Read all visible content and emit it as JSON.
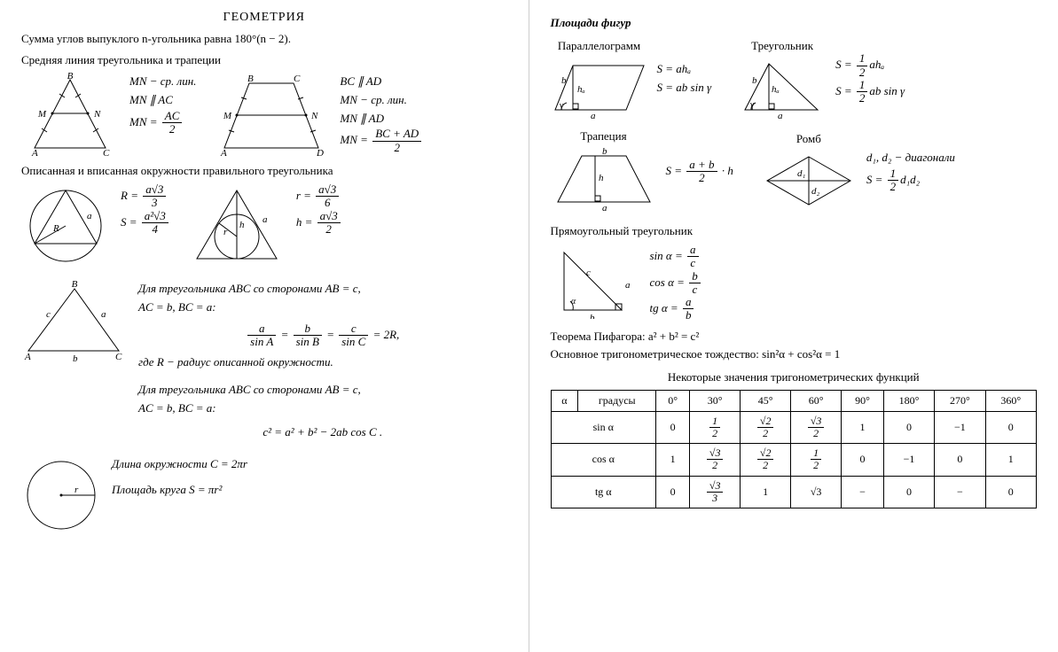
{
  "left": {
    "title": "ГЕОМЕТРИЯ",
    "polygon_sum": "Сумма углов выпуклого n-угольника равна 180°(n − 2).",
    "midline_head": "Средняя линия треугольника и трапеции",
    "tri_midline": {
      "l1": "MN − ср. лин.",
      "l2": "MN ∥ AC",
      "l3_pre": "MN = ",
      "frac_num": "AC",
      "frac_den": "2"
    },
    "trap_midline": {
      "l1": "BC ∥ AD",
      "l2": "MN − ср. лин.",
      "l3": "MN ∥ AD",
      "l4_pre": "MN = ",
      "frac_num": "BC + AD",
      "frac_den": "2"
    },
    "circ_head": "Описанная и вписанная окружности правильного треугольника",
    "circum": {
      "R_pre": "R = ",
      "R_num": "a√3",
      "R_den": "3",
      "S_pre": "S = ",
      "S_num": "a²√3",
      "S_den": "4"
    },
    "inscr": {
      "r_pre": "r = ",
      "r_num": "a√3",
      "r_den": "6",
      "h_pre": "h = ",
      "h_num": "a√3",
      "h_den": "2"
    },
    "sine_law": {
      "intro1": "Для треугольника ABC со сторонами AB = c,",
      "intro2": "AC = b, BC = a:",
      "eq": "= 2R,",
      "fa_num": "a",
      "fa_den": "sin A",
      "fb_num": "b",
      "fb_den": "sin B",
      "fc_num": "c",
      "fc_den": "sin C",
      "where": "где R − радиус описанной окружности."
    },
    "cos_law": {
      "intro1": "Для треугольника ABC со сторонами AB = c,",
      "intro2": "AC = b, BC = a:",
      "eq": "c² = a² + b² − 2ab cos C ."
    },
    "circle": {
      "len": "Длина окружности C = 2πr",
      "area": "Площадь круга S = πr²"
    }
  },
  "right": {
    "title": "Площади фигур",
    "shapes": {
      "para": {
        "name": "Параллелограмм",
        "f1": "S = ahₐ",
        "f2": "S = ab sin γ"
      },
      "tri": {
        "name": "Треугольник",
        "f1_pre": "S = ",
        "f1_num": "1",
        "f1_den": "2",
        "f1_post": "ahₐ",
        "f2_pre": "S = ",
        "f2_num": "1",
        "f2_den": "2",
        "f2_post": "ab sin γ"
      },
      "trap": {
        "name": "Трапеция",
        "f_pre": "S = ",
        "f_num": "a + b",
        "f_den": "2",
        "f_post": " · h"
      },
      "rhom": {
        "name": "Ромб",
        "d": "d₁, d₂ − диагонали",
        "f_pre": "S = ",
        "f_num": "1",
        "f_den": "2",
        "f_post": "d₁d₂"
      }
    },
    "rt_head": "Прямоугольный треугольник",
    "rt": {
      "sin_pre": "sin α = ",
      "sin_num": "a",
      "sin_den": "c",
      "cos_pre": "cos α = ",
      "cos_num": "b",
      "cos_den": "c",
      "tg_pre": "tg α = ",
      "tg_num": "a",
      "tg_den": "b"
    },
    "pyth": "Теорема Пифагора: a² + b² = c²",
    "trig_id": "Основное тригонометрическое тождество: sin²α + cos²α = 1",
    "table_caption": "Некоторые значения тригонометрических функций",
    "table": {
      "h_alpha": "α",
      "h_deg": "градусы",
      "degrees": [
        "0°",
        "30°",
        "45°",
        "60°",
        "90°",
        "180°",
        "270°",
        "360°"
      ],
      "rows": [
        {
          "label": "sin α",
          "cells": [
            "0",
            {
              "n": "1",
              "d": "2"
            },
            {
              "n": "√2",
              "d": "2"
            },
            {
              "n": "√3",
              "d": "2"
            },
            "1",
            "0",
            "−1",
            "0"
          ]
        },
        {
          "label": "cos α",
          "cells": [
            "1",
            {
              "n": "√3",
              "d": "2"
            },
            {
              "n": "√2",
              "d": "2"
            },
            {
              "n": "1",
              "d": "2"
            },
            "0",
            "−1",
            "0",
            "1"
          ]
        },
        {
          "label": "tg α",
          "cells": [
            "0",
            {
              "n": "√3",
              "d": "3"
            },
            "1",
            "√3",
            "−",
            "0",
            "−",
            "0"
          ]
        }
      ]
    }
  }
}
